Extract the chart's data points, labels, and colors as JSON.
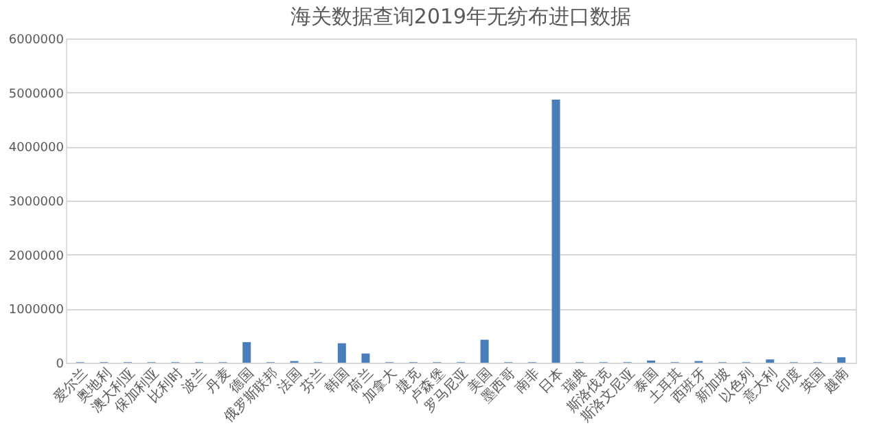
{
  "chart_data": {
    "type": "bar",
    "title": "海关数据查询2019年无纺布进口数据",
    "categories": [
      "爱尔兰",
      "奥地利",
      "澳大利亚",
      "保加利亚",
      "比利时",
      "波兰",
      "丹麦",
      "德国",
      "俄罗斯联邦",
      "法国",
      "芬兰",
      "韩国",
      "荷兰",
      "加拿大",
      "捷克",
      "卢森堡",
      "罗马尼亚",
      "美国",
      "墨西哥",
      "南非",
      "日本",
      "瑞典",
      "斯洛伐克",
      "斯洛文尼亚",
      "泰国",
      "土耳其",
      "西班牙",
      "新加坡",
      "以色列",
      "意大利",
      "印度",
      "英国",
      "越南"
    ],
    "values": [
      10000,
      10000,
      10000,
      10000,
      10000,
      10000,
      10000,
      380000,
      10000,
      30000,
      10000,
      360000,
      170000,
      10000,
      10000,
      10000,
      10000,
      425000,
      10000,
      10000,
      4870000,
      10000,
      10000,
      10000,
      40000,
      10000,
      30000,
      10000,
      10000,
      60000,
      10000,
      10000,
      100000
    ],
    "color": "#4a7ebb",
    "ylim": [
      0,
      6000000
    ],
    "yticks": [
      0,
      1000000,
      2000000,
      3000000,
      4000000,
      5000000,
      6000000
    ],
    "grid": "y"
  }
}
